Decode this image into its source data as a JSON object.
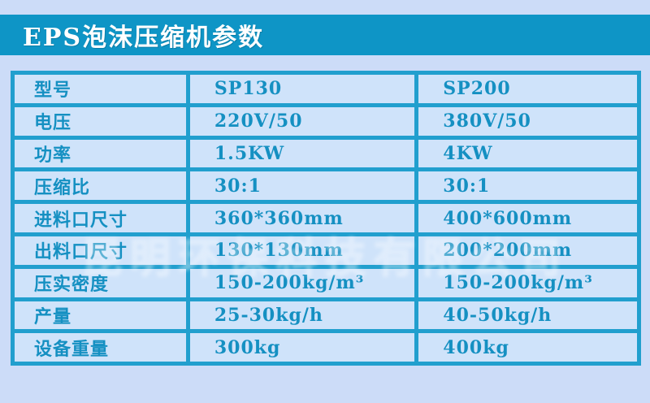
{
  "header": {
    "title": "EPS泡沫压缩机参数"
  },
  "colors": {
    "page_bg": "#ccdcf8",
    "title_band": "#0e95c6",
    "table_border": "#219fce",
    "cell_bg": "#cfe3fa",
    "cell_text": "#1590c2",
    "title_text": "#ffffff"
  },
  "table": {
    "rows": [
      {
        "cells": [
          "型号",
          "SP130",
          "SP200"
        ]
      },
      {
        "cells": [
          "电压",
          "220V/50",
          "380V/50"
        ]
      },
      {
        "cells": [
          "功率",
          "1.5KW",
          "4KW"
        ]
      },
      {
        "cells": [
          "压缩比",
          "30:1",
          "30:1"
        ]
      },
      {
        "cells": [
          "进料口尺寸",
          "360*360mm",
          "400*600mm"
        ]
      },
      {
        "cells": [
          "出料口尺寸",
          "130*130mm",
          "200*200mm"
        ]
      },
      {
        "cells": [
          "压实密度",
          "150-200kg/m³",
          "150-200kg/m³"
        ]
      },
      {
        "cells": [
          "产量",
          "25-30kg/h",
          "40-50kg/h"
        ]
      },
      {
        "cells": [
          "设备重量",
          "300kg",
          "400kg"
        ]
      }
    ]
  },
  "watermark": {
    "text": "昆明环保科技有限公司"
  }
}
